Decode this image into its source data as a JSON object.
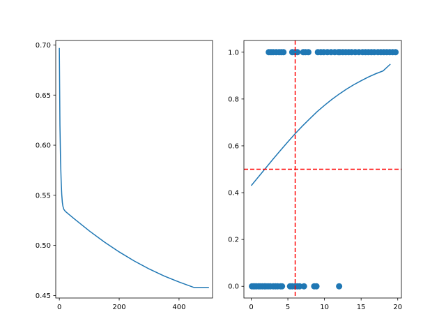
{
  "colors": {
    "series": "#1f77b4",
    "threshold": "#ff0000",
    "axis": "#000000"
  },
  "chart_data": [
    {
      "type": "line",
      "title": "",
      "xlabel": "",
      "ylabel": "",
      "xlim": [
        -12,
        512
      ],
      "ylim": [
        0.4475,
        0.7045
      ],
      "xticks": [
        0,
        200,
        400
      ],
      "xtick_labels": [
        "0",
        "200",
        "400"
      ],
      "yticks": [
        0.45,
        0.5,
        0.55,
        0.6,
        0.65,
        0.7
      ],
      "ytick_labels": [
        "0.45",
        "0.50",
        "0.55",
        "0.60",
        "0.65",
        "0.70"
      ],
      "grid": false,
      "series": [
        {
          "x": [
            0,
            2,
            4,
            6,
            8,
            10,
            12,
            15,
            20,
            30,
            50,
            75,
            100,
            150,
            200,
            250,
            300,
            350,
            400,
            450,
            500
          ],
          "y": [
            0.697,
            0.62,
            0.585,
            0.565,
            0.551,
            0.543,
            0.539,
            0.536,
            0.534,
            0.5315,
            0.5265,
            0.5205,
            0.5145,
            0.5035,
            0.4935,
            0.4845,
            0.4765,
            0.4695,
            0.4635,
            0.458,
            0.458
          ]
        }
      ]
    },
    {
      "type": "scatter",
      "title": "",
      "xlabel": "",
      "ylabel": "",
      "xlim": [
        -1,
        20.5
      ],
      "ylim": [
        -0.05,
        1.05
      ],
      "xticks": [
        0,
        5,
        10,
        15,
        20
      ],
      "xtick_labels": [
        "0",
        "5",
        "10",
        "15",
        "20"
      ],
      "yticks": [
        0.0,
        0.2,
        0.4,
        0.6,
        0.8,
        1.0
      ],
      "ytick_labels": [
        "0.0",
        "0.2",
        "0.4",
        "0.6",
        "0.8",
        "1.0"
      ],
      "grid": false,
      "points": {
        "x": [
          0.1,
          0.3,
          0.5,
          0.7,
          1.0,
          1.2,
          1.5,
          1.8,
          2.0,
          2.3,
          2.6,
          3.0,
          3.3,
          3.6,
          4.0,
          4.2,
          5.3,
          5.6,
          6.0,
          6.3,
          6.6,
          7.2,
          8.6,
          8.9,
          12.0,
          2.4,
          2.7,
          3.0,
          3.4,
          3.8,
          4.1,
          4.4,
          5.6,
          6.0,
          6.3,
          7.1,
          7.4,
          7.8,
          9.1,
          9.5,
          9.9,
          10.4,
          10.9,
          11.4,
          11.9,
          12.1,
          12.5,
          12.9,
          13.3,
          13.7,
          14.2,
          14.7,
          15.2,
          15.6,
          16.0,
          16.4,
          16.8,
          17.3,
          17.7,
          18.1,
          18.5,
          18.9,
          19.3,
          19.7
        ],
        "y": [
          0,
          0,
          0,
          0,
          0,
          0,
          0,
          0,
          0,
          0,
          0,
          0,
          0,
          0,
          0,
          0,
          0,
          0,
          0,
          0,
          0,
          0,
          0,
          0,
          0,
          1,
          1,
          1,
          1,
          1,
          1,
          1,
          1,
          1,
          1,
          1,
          1,
          1,
          1,
          1,
          1,
          1,
          1,
          1,
          1,
          1,
          1,
          1,
          1,
          1,
          1,
          1,
          1,
          1,
          1,
          1,
          1,
          1,
          1,
          1,
          1,
          1,
          1,
          1
        ]
      },
      "curve": {
        "x": [
          0,
          1,
          2,
          3,
          4,
          5,
          6,
          7,
          8,
          9,
          10,
          11,
          12,
          13,
          14,
          15,
          16,
          17,
          18,
          19
        ],
        "y": [
          0.43,
          0.468,
          0.506,
          0.544,
          0.581,
          0.617,
          0.652,
          0.685,
          0.716,
          0.746,
          0.773,
          0.798,
          0.821,
          0.842,
          0.861,
          0.878,
          0.894,
          0.908,
          0.92,
          0.949
        ]
      },
      "vline_x": 6,
      "hline_y": 0.5
    }
  ]
}
